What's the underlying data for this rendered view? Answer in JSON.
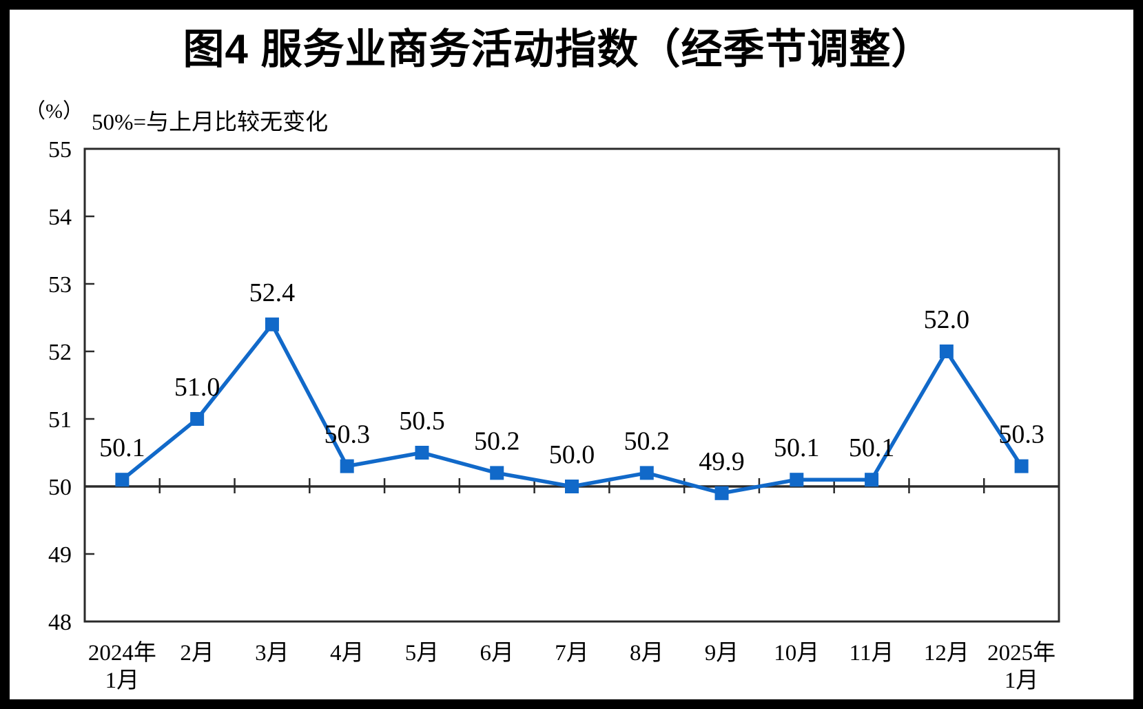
{
  "chart_data": {
    "type": "line",
    "title": "图4 服务业商务活动指数（经季节调整）",
    "unit_label": "（%）",
    "note": "50%=与上月比较无变化",
    "series_name": "服务业商务活动指数",
    "categories": [
      [
        "2024年",
        "1月"
      ],
      [
        "2月"
      ],
      [
        "3月"
      ],
      [
        "4月"
      ],
      [
        "5月"
      ],
      [
        "6月"
      ],
      [
        "7月"
      ],
      [
        "8月"
      ],
      [
        "9月"
      ],
      [
        "10月"
      ],
      [
        "11月"
      ],
      [
        "12月"
      ],
      [
        "2025年",
        "1月"
      ]
    ],
    "values": [
      50.1,
      51.0,
      52.4,
      50.3,
      50.5,
      50.2,
      50.0,
      50.2,
      49.9,
      50.1,
      50.1,
      52.0,
      50.3
    ],
    "data_labels": [
      "50.1",
      "51.0",
      "52.4",
      "50.3",
      "50.5",
      "50.2",
      "50.0",
      "50.2",
      "49.9",
      "50.1",
      "50.1",
      "52.0",
      "50.3"
    ],
    "y_tick_labels": [
      "48",
      "49",
      "50",
      "51",
      "52",
      "53",
      "54",
      "55"
    ],
    "ylim": [
      48,
      55
    ],
    "ytick_step": 1,
    "reference_value": 50,
    "grid": false,
    "legend": "none",
    "line_color": "#1169C9",
    "marker": "square",
    "marker_color": "#1169C9",
    "axis_color": "#2a2a2a",
    "text_color": "#000000"
  }
}
